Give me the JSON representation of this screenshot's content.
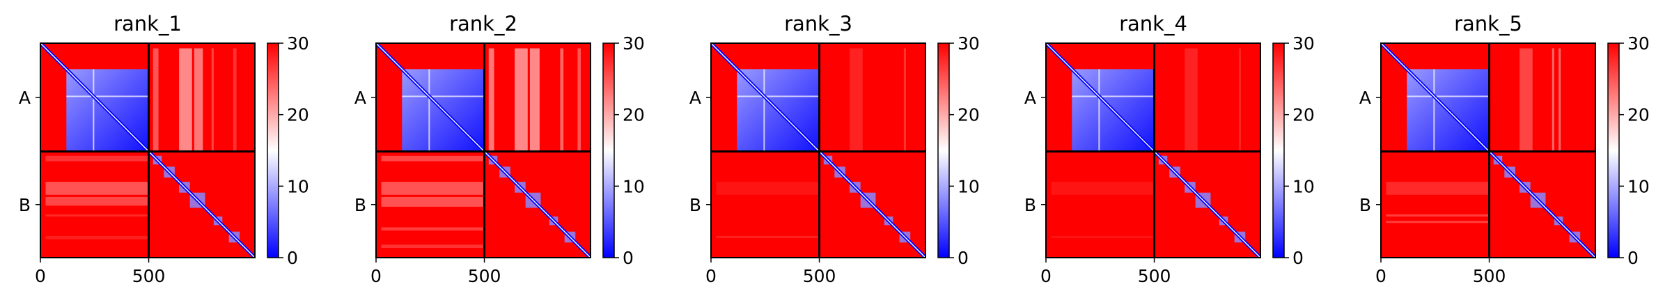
{
  "chart_data": [
    {
      "type": "heatmap",
      "title": "rank_1",
      "xlabel": "",
      "ylabel": "",
      "x_ticks": [
        "0",
        "500"
      ],
      "y_ticks": [
        "A",
        "B"
      ],
      "chain_boundary": 500,
      "length": 990,
      "colorbar": {
        "range": [
          0,
          30
        ],
        "ticks": [
          "0",
          "10",
          "20",
          "30"
        ],
        "colormap": "bwr"
      },
      "colors": {
        "low": "#0000ff",
        "mid": "#ffffff",
        "high": "#ff0000"
      },
      "intra_chain_A_block": {
        "start": 120,
        "end": 500,
        "level": 5
      },
      "inter_chain_stripes": [
        {
          "start": 520,
          "end": 545,
          "level": 25
        },
        {
          "start": 640,
          "end": 700,
          "level": 22
        },
        {
          "start": 710,
          "end": 750,
          "level": 23
        },
        {
          "start": 790,
          "end": 800,
          "level": 26
        },
        {
          "start": 890,
          "end": 905,
          "level": 27
        }
      ]
    },
    {
      "type": "heatmap",
      "title": "rank_2",
      "xlabel": "",
      "ylabel": "",
      "x_ticks": [
        "0",
        "500"
      ],
      "y_ticks": [
        "A",
        "B"
      ],
      "chain_boundary": 500,
      "length": 990,
      "colorbar": {
        "range": [
          0,
          30
        ],
        "ticks": [
          "0",
          "10",
          "20",
          "30"
        ],
        "colormap": "bwr"
      },
      "colors": {
        "low": "#0000ff",
        "mid": "#ffffff",
        "high": "#ff0000"
      },
      "intra_chain_A_block": {
        "start": 120,
        "end": 500,
        "level": 5
      },
      "inter_chain_stripes": [
        {
          "start": 520,
          "end": 545,
          "level": 23
        },
        {
          "start": 640,
          "end": 700,
          "level": 22
        },
        {
          "start": 710,
          "end": 755,
          "level": 22
        },
        {
          "start": 850,
          "end": 865,
          "level": 24
        },
        {
          "start": 930,
          "end": 945,
          "level": 25
        }
      ]
    },
    {
      "type": "heatmap",
      "title": "rank_3",
      "xlabel": "",
      "ylabel": "",
      "x_ticks": [
        "0",
        "500"
      ],
      "y_ticks": [
        "A",
        "B"
      ],
      "chain_boundary": 500,
      "length": 990,
      "colorbar": {
        "range": [
          0,
          30
        ],
        "ticks": [
          "0",
          "10",
          "20",
          "30"
        ],
        "colormap": "bwr"
      },
      "colors": {
        "low": "#0000ff",
        "mid": "#ffffff",
        "high": "#ff0000"
      },
      "intra_chain_A_block": {
        "start": 120,
        "end": 500,
        "level": 5
      },
      "inter_chain_stripes": [
        {
          "start": 640,
          "end": 700,
          "level": 28
        },
        {
          "start": 890,
          "end": 900,
          "level": 27
        }
      ]
    },
    {
      "type": "heatmap",
      "title": "rank_4",
      "xlabel": "",
      "ylabel": "",
      "x_ticks": [
        "0",
        "500"
      ],
      "y_ticks": [
        "A",
        "B"
      ],
      "chain_boundary": 500,
      "length": 990,
      "colorbar": {
        "range": [
          0,
          30
        ],
        "ticks": [
          "0",
          "10",
          "20",
          "30"
        ],
        "colormap": "bwr"
      },
      "colors": {
        "low": "#0000ff",
        "mid": "#ffffff",
        "high": "#ff0000"
      },
      "intra_chain_A_block": {
        "start": 120,
        "end": 500,
        "level": 5
      },
      "inter_chain_stripes": [
        {
          "start": 640,
          "end": 700,
          "level": 28
        },
        {
          "start": 890,
          "end": 900,
          "level": 28
        }
      ]
    },
    {
      "type": "heatmap",
      "title": "rank_5",
      "xlabel": "",
      "ylabel": "",
      "x_ticks": [
        "0",
        "500"
      ],
      "y_ticks": [
        "A",
        "B"
      ],
      "chain_boundary": 500,
      "length": 990,
      "colorbar": {
        "range": [
          0,
          30
        ],
        "ticks": [
          "0",
          "10",
          "20",
          "30"
        ],
        "colormap": "bwr"
      },
      "colors": {
        "low": "#0000ff",
        "mid": "#ffffff",
        "high": "#ff0000"
      },
      "intra_chain_A_block": {
        "start": 120,
        "end": 500,
        "level": 5
      },
      "inter_chain_stripes": [
        {
          "start": 640,
          "end": 700,
          "level": 26
        },
        {
          "start": 790,
          "end": 800,
          "level": 24
        },
        {
          "start": 820,
          "end": 830,
          "level": 24
        }
      ]
    }
  ]
}
